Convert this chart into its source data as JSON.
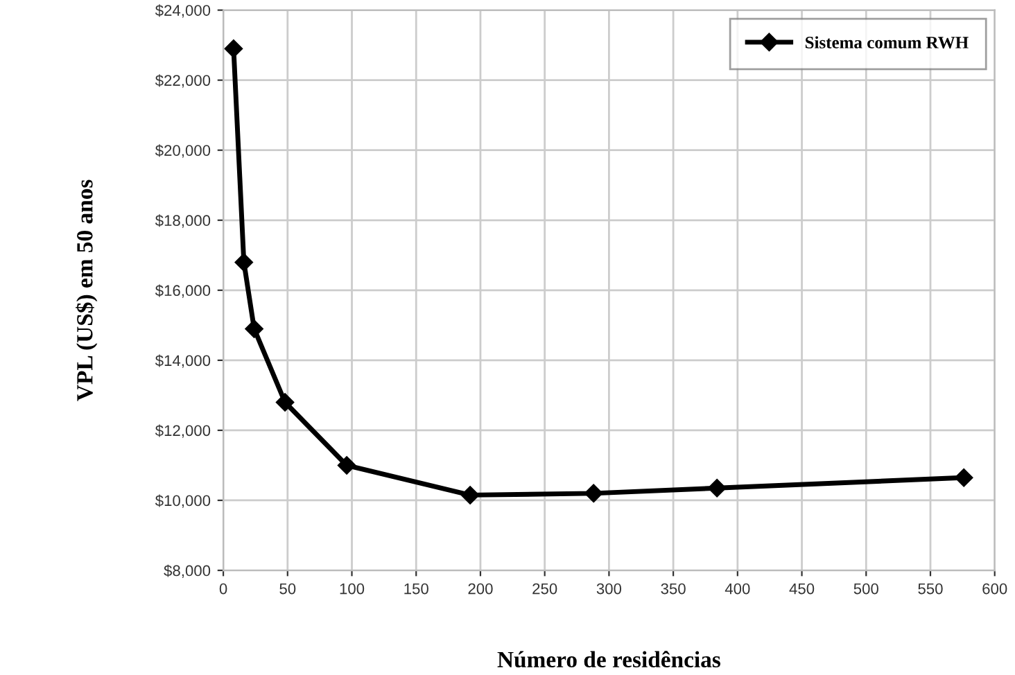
{
  "chart_data": {
    "type": "line",
    "xlabel": "Número de residências",
    "ylabel": "VPL (US$) em 50 anos",
    "x": [
      8,
      16,
      24,
      48,
      96,
      192,
      288,
      384,
      576
    ],
    "series": [
      {
        "name": "Sistema comum RWH",
        "color": "#000000",
        "values": [
          22900,
          16800,
          14900,
          12800,
          11000,
          10150,
          10200,
          10350,
          10650
        ]
      }
    ],
    "xlim": [
      0,
      600
    ],
    "xticks": [
      0,
      50,
      100,
      150,
      200,
      250,
      300,
      350,
      400,
      450,
      500,
      550,
      600
    ],
    "ylim": [
      8000,
      24000
    ],
    "yticks": [
      {
        "value": 8000,
        "label": "$8,000"
      },
      {
        "value": 10000,
        "label": "$10,000"
      },
      {
        "value": 12000,
        "label": "$12,000"
      },
      {
        "value": 14000,
        "label": "$14,000"
      },
      {
        "value": 16000,
        "label": "$16,000"
      },
      {
        "value": 18000,
        "label": "$18,000"
      },
      {
        "value": 20000,
        "label": "$20,000"
      },
      {
        "value": 22000,
        "label": "$22,000"
      },
      {
        "value": 24000,
        "label": "$24,000"
      }
    ],
    "grid": true,
    "legend": "top right",
    "marker": "diamond",
    "line_style": "solid"
  }
}
